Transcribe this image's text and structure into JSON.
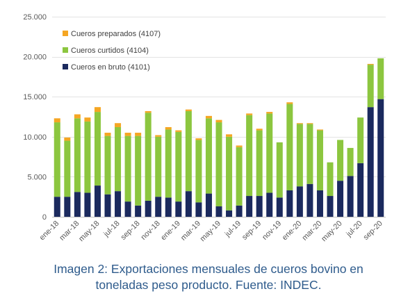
{
  "chart_data": {
    "type": "bar",
    "stacked": true,
    "title": "",
    "xlabel": "",
    "ylabel": "",
    "ylim": [
      0,
      25000
    ],
    "yticks": [
      0,
      5000,
      10000,
      15000,
      20000,
      25000
    ],
    "ytick_labels": [
      "0",
      "5.000",
      "10.000",
      "15.000",
      "20.000",
      "25.000"
    ],
    "grid": true,
    "legend_position": "top-left",
    "categories": [
      "ene-18",
      "feb-18",
      "mar-18",
      "abr-18",
      "may-18",
      "jun-18",
      "jul-18",
      "ago-18",
      "sep-18",
      "oct-18",
      "nov-18",
      "dic-18",
      "ene-19",
      "feb-19",
      "mar-19",
      "abr-19",
      "may-19",
      "jun-19",
      "jul-19",
      "ago-19",
      "sep-19",
      "oct-19",
      "nov-19",
      "dic-19",
      "ene-20",
      "feb-20",
      "mar-20",
      "abr-20",
      "may-20",
      "jun-20",
      "jul-20",
      "ago-20",
      "sep-20"
    ],
    "xtick_labels": [
      "ene-18",
      "",
      "mar-18",
      "",
      "may-18",
      "",
      "jul-18",
      "",
      "sep-18",
      "",
      "nov-18",
      "",
      "ene-19",
      "",
      "mar-19",
      "",
      "may-19",
      "",
      "jul-19",
      "",
      "sep-19",
      "",
      "nov-19",
      "",
      "ene-20",
      "",
      "mar-20",
      "",
      "may-20",
      "",
      "jul-20",
      "",
      "sep-20"
    ],
    "series": [
      {
        "name": "Cueros en bruto (4101)",
        "color": "#1b2a5e",
        "values": [
          2500,
          2500,
          3100,
          3000,
          3900,
          2800,
          3200,
          1900,
          1400,
          2000,
          2500,
          2400,
          1900,
          3200,
          1800,
          2900,
          1300,
          800,
          1400,
          2600,
          2600,
          3000,
          2400,
          3300,
          3800,
          4100,
          3300,
          2600,
          4500,
          5100,
          6700,
          13700,
          14700
        ]
      },
      {
        "name": "Cueros curtidos (4104)",
        "color": "#8cc63f",
        "values": [
          9300,
          7000,
          9200,
          8900,
          9200,
          7300,
          8000,
          8200,
          8700,
          11000,
          7500,
          8500,
          8700,
          10000,
          7800,
          9400,
          10500,
          9200,
          7300,
          10100,
          8200,
          9900,
          6900,
          10800,
          7800,
          7500,
          7500,
          4200,
          5100,
          3500,
          5700,
          5300,
          5100
        ]
      },
      {
        "name": "Cueros preparados (4107)",
        "color": "#f5a623",
        "values": [
          500,
          400,
          500,
          500,
          600,
          400,
          500,
          400,
          400,
          200,
          200,
          300,
          200,
          200,
          200,
          300,
          300,
          300,
          200,
          200,
          200,
          200,
          0,
          200,
          100,
          100,
          100,
          0,
          0,
          0,
          0,
          100,
          0
        ]
      }
    ]
  },
  "caption": {
    "line1": "Imagen 2: Exportaciones mensuales de cueros bovino en",
    "line2": "toneladas peso producto. Fuente: INDEC."
  }
}
